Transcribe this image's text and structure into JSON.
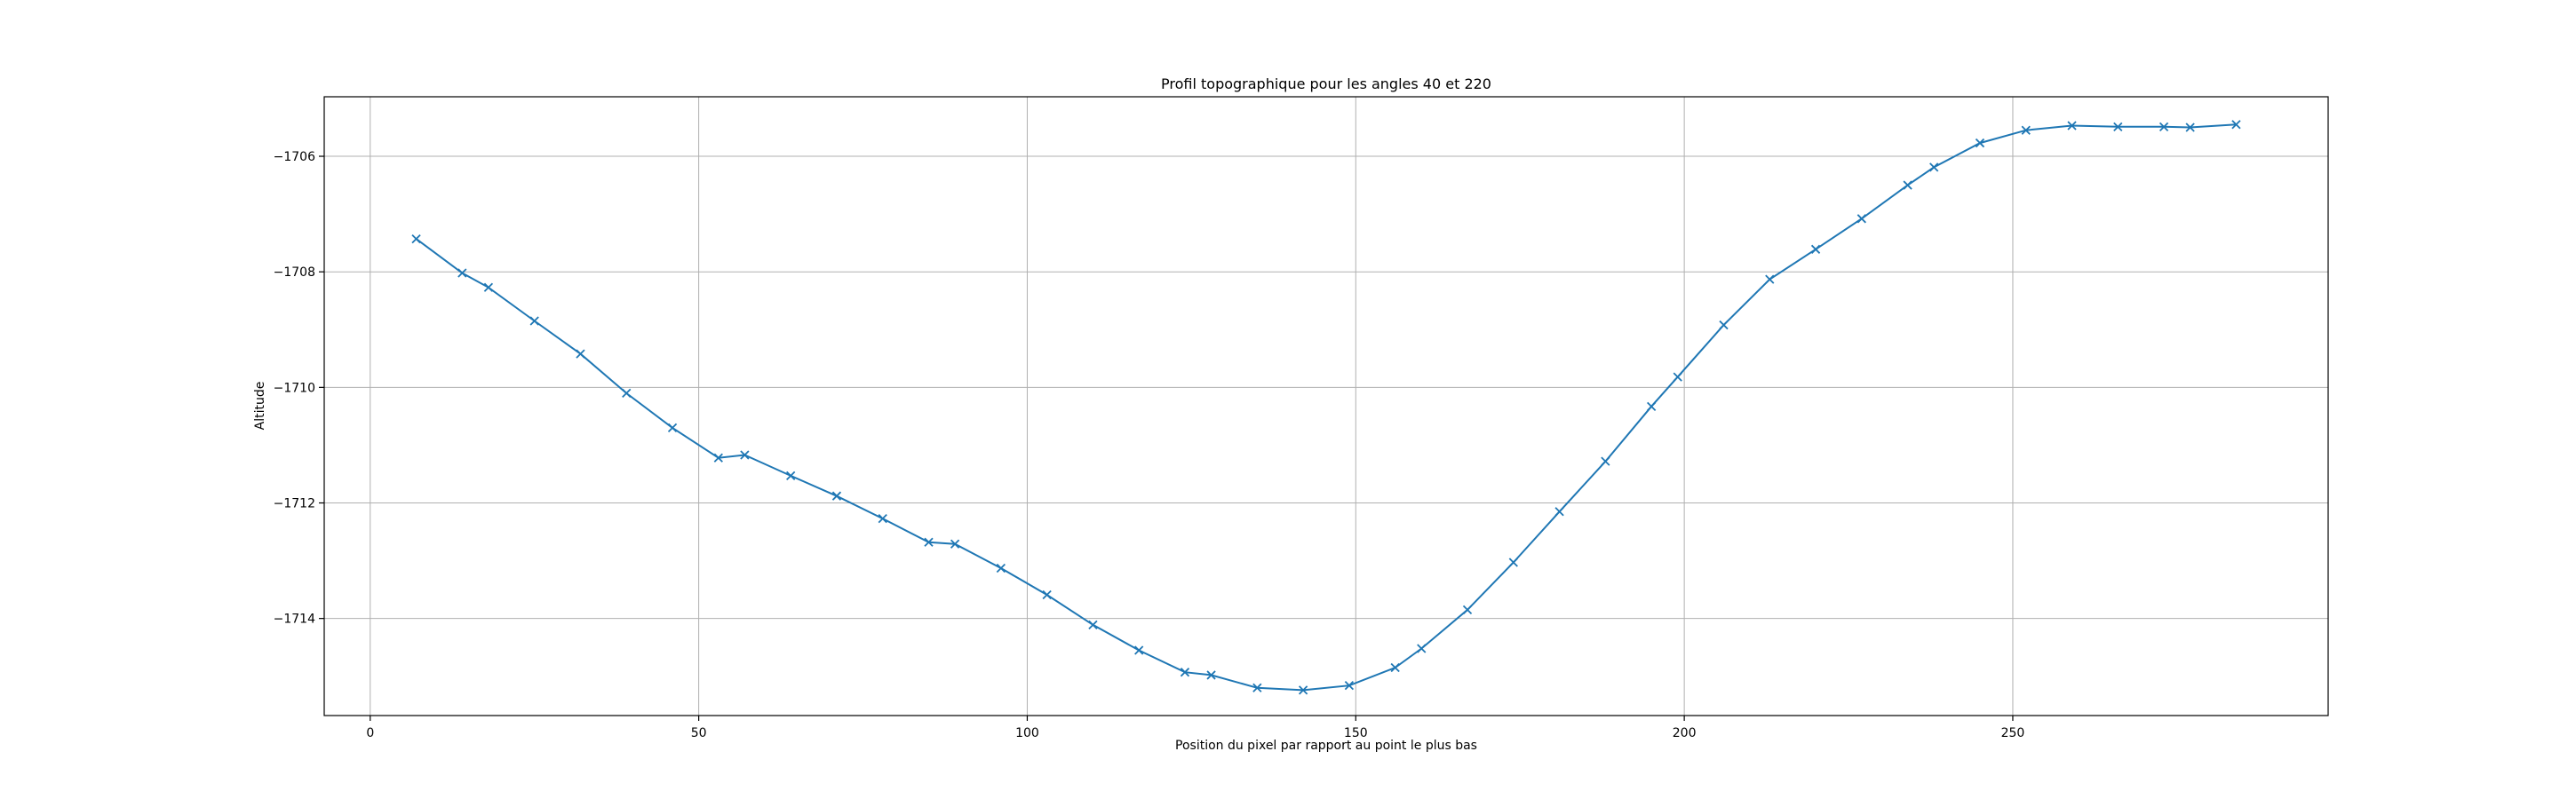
{
  "chart_data": {
    "type": "line",
    "title": "Profil topographique pour les angles 40 et 220",
    "xlabel": "Position du pixel par rapport au point le plus bas",
    "ylabel": "Altitude",
    "xlim": [
      -7,
      298
    ],
    "ylim": [
      -1715.68,
      -1704.97
    ],
    "xticks": [
      0,
      50,
      100,
      150,
      200,
      250
    ],
    "xtick_labels": [
      "0",
      "50",
      "100",
      "150",
      "200",
      "250"
    ],
    "yticks": [
      -1706,
      -1708,
      -1710,
      -1712,
      -1714
    ],
    "ytick_labels": [
      "−1706",
      "−1708",
      "−1710",
      "−1712",
      "−1714"
    ],
    "grid": true,
    "marker": "x",
    "series_color": "#1f77b4",
    "series": [
      {
        "x": [
          7,
          14,
          18,
          25,
          32,
          39,
          46,
          53,
          57,
          64,
          71,
          78,
          85,
          89,
          96,
          103,
          110,
          117,
          124,
          128,
          135,
          142,
          149,
          156,
          160,
          167,
          174,
          181,
          188,
          195,
          199,
          206,
          213,
          220,
          227,
          234,
          238,
          245,
          252,
          259,
          266,
          273,
          277,
          284
        ],
        "y": [
          -1707.43,
          -1708.02,
          -1708.27,
          -1708.85,
          -1709.42,
          -1710.1,
          -1710.7,
          -1711.22,
          -1711.17,
          -1711.53,
          -1711.88,
          -1712.27,
          -1712.68,
          -1712.71,
          -1713.13,
          -1713.59,
          -1714.11,
          -1714.55,
          -1714.93,
          -1714.98,
          -1715.2,
          -1715.24,
          -1715.16,
          -1714.85,
          -1714.52,
          -1713.85,
          -1713.03,
          -1712.15,
          -1711.28,
          -1710.33,
          -1709.82,
          -1708.92,
          -1708.13,
          -1707.61,
          -1707.08,
          -1706.5,
          -1706.19,
          -1705.77,
          -1705.55,
          -1705.47,
          -1705.49,
          -1705.49,
          -1705.5,
          -1705.45
        ]
      }
    ]
  }
}
